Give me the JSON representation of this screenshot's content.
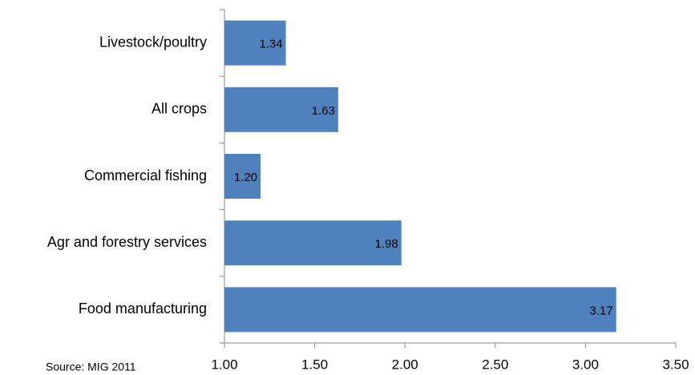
{
  "chart_data": {
    "type": "bar",
    "orientation": "horizontal",
    "categories": [
      "Livestock/poultry",
      "All crops",
      "Commercial fishing",
      "Agr and forestry services",
      "Food manufacturing"
    ],
    "values": [
      1.34,
      1.63,
      1.2,
      1.98,
      3.17
    ],
    "value_labels": [
      "1.34",
      "1.63",
      "1.20",
      "1.98",
      "3.17"
    ],
    "color": "#4f81bd",
    "xlim": [
      1.0,
      3.5
    ],
    "xticks": [
      {
        "value": 1.0,
        "label": "1.00"
      },
      {
        "value": 1.5,
        "label": "1.50"
      },
      {
        "value": 2.0,
        "label": "2.00"
      },
      {
        "value": 2.5,
        "label": "2.50"
      },
      {
        "value": 3.0,
        "label": "3.00"
      },
      {
        "value": 3.5,
        "label": "3.50"
      }
    ],
    "annotation": "Source: MIG 2011"
  }
}
